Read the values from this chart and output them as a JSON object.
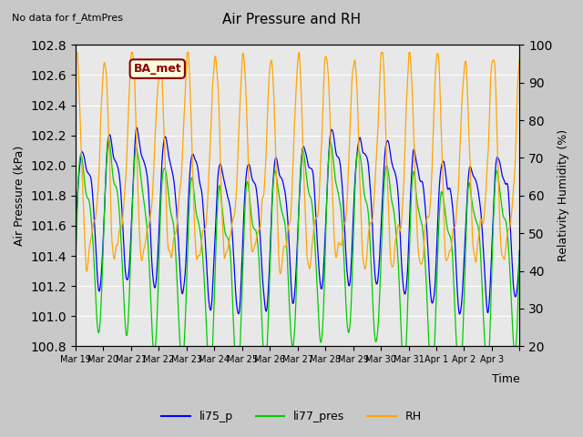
{
  "title": "Air Pressure and RH",
  "subtitle": "No data for f_AtmPres",
  "xlabel": "Time",
  "ylabel_left": "Air Pressure (kPa)",
  "ylabel_right": "Relativity Humidity (%)",
  "legend": [
    "li75_p",
    "li77_pres",
    "RH"
  ],
  "colors": [
    "blue",
    "#00cc00",
    "orange"
  ],
  "ylim_left": [
    100.8,
    102.8
  ],
  "ylim_right": [
    20,
    100
  ],
  "x_tick_labels": [
    "Mar 19",
    "Mar 20",
    "Mar 21",
    "Mar 22",
    "Mar 23",
    "Mar 24",
    "Mar 25",
    "Mar 26",
    "Mar 27",
    "Mar 28",
    "Mar 29",
    "Mar 30",
    "Mar 31",
    "Apr 1",
    "Apr 2",
    "Apr 3"
  ],
  "ba_met_label": "BA_met",
  "n_days": 16
}
